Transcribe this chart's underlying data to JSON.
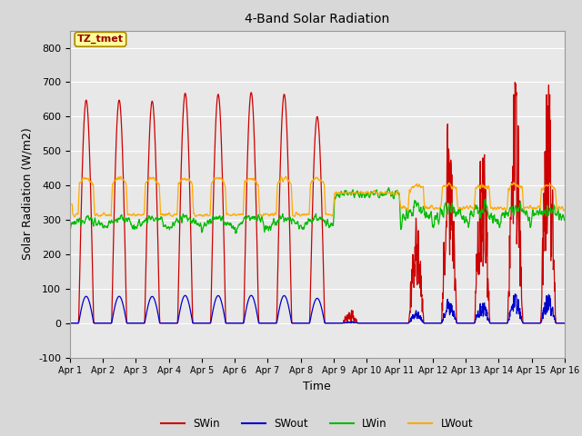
{
  "title": "4-Band Solar Radiation",
  "xlabel": "Time",
  "ylabel": "Solar Radiation (W/m2)",
  "ylim": [
    -100,
    850
  ],
  "xlim": [
    0,
    15
  ],
  "xtick_labels": [
    "Apr 1",
    "Apr 2",
    "Apr 3",
    "Apr 4",
    "Apr 5",
    "Apr 6",
    "Apr 7",
    "Apr 8",
    "Apr 9",
    "Apr 10",
    "Apr 11",
    "Apr 12",
    "Apr 13",
    "Apr 14",
    "Apr 15",
    "Apr 16"
  ],
  "ytick_values": [
    -100,
    0,
    100,
    200,
    300,
    400,
    500,
    600,
    700,
    800
  ],
  "colors": {
    "SWin": "#cc0000",
    "SWout": "#0000cc",
    "LWin": "#00bb00",
    "LWout": "#ffaa00"
  },
  "fig_bg": "#d8d8d8",
  "plot_bg": "#e8e8e8",
  "annotation_text": "TZ_tmet",
  "annotation_color": "#990000",
  "annotation_bg": "#ffff99",
  "annotation_edge": "#aa8800"
}
